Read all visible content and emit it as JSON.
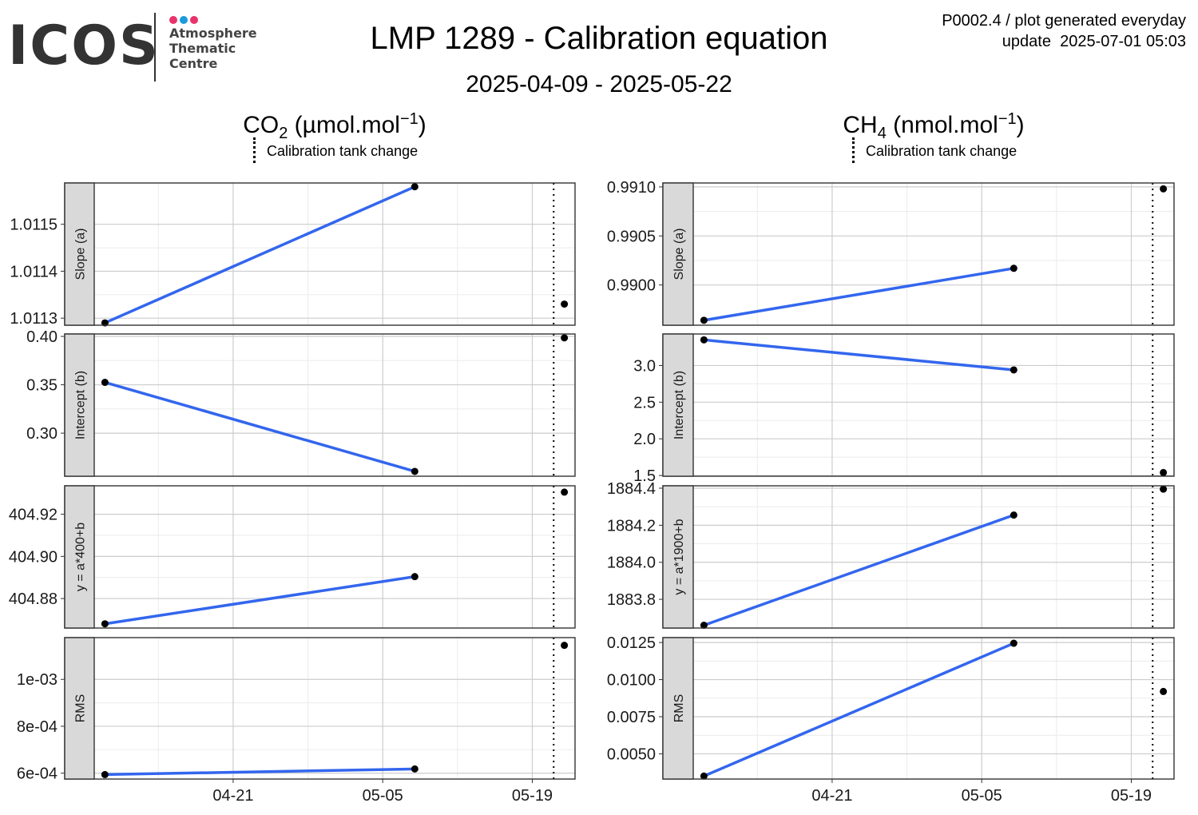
{
  "header": {
    "logo_word": "ICOS",
    "logo_lines": [
      "Atmosphere",
      "Thematic",
      "Centre"
    ],
    "logo_dot_colors": [
      "#e8336d",
      "#1a9bdc",
      "#e8336d"
    ],
    "title": "LMP 1289 - Calibration equation",
    "subtitle": "2025-04-09 - 2025-05-22",
    "meta_line1": "P0002.4 / plot generated everyday",
    "meta_line2": "update  2025-07-01 05:03"
  },
  "columns": [
    {
      "gas": "CO",
      "gas_sub": "2",
      "unit": " (µmol.mol",
      "unit_sup": "−1",
      "unit_end": ")",
      "legend": "Calibration tank change"
    },
    {
      "gas": "CH",
      "gas_sub": "4",
      "unit": " (nmol.mol",
      "unit_sup": "−1",
      "unit_end": ")",
      "legend": "Calibration tank change"
    }
  ],
  "colors": {
    "line": "#3366ee",
    "point": "#000000",
    "strip_bg": "#d9d9d9",
    "grid_major": "#cccccc",
    "grid_minor": "#ebebeb"
  },
  "chart_data": {
    "type": "line",
    "facet_rows": [
      "Slope (a)",
      "Intercept (b)",
      "y = a*400+b",
      "RMS"
    ],
    "facet_rows_ch4": [
      "Slope (a)",
      "Intercept (b)",
      "y = a*1900+b",
      "RMS"
    ],
    "x_ticks": [
      "04-21",
      "05-05",
      "05-19"
    ],
    "x_tick_dates": [
      "2025-04-21",
      "2025-05-05",
      "2025-05-19"
    ],
    "xlim": [
      "2025-04-08",
      "2025-05-23"
    ],
    "calibration_tank_change": "2025-05-21",
    "dates": [
      "2025-04-09",
      "2025-05-08",
      "2025-05-22"
    ],
    "panels": [
      {
        "col": 0,
        "row": 0,
        "values": [
          1.01129,
          1.01158,
          1.01133
        ],
        "ylim": [
          1.011285,
          1.011588
        ],
        "ticks": [
          1.0113,
          1.0114,
          1.0115
        ],
        "tick_labels": [
          "1.0113",
          "1.0114",
          "1.0115"
        ]
      },
      {
        "col": 0,
        "row": 1,
        "values": [
          0.3525,
          0.2605,
          0.3985
        ],
        "ylim": [
          0.2555,
          0.4025
        ],
        "ticks": [
          0.3,
          0.35,
          0.4
        ],
        "tick_labels": [
          "0.30",
          "0.35",
          "0.40"
        ]
      },
      {
        "col": 0,
        "row": 2,
        "values": [
          404.868,
          404.8904,
          404.9305
        ],
        "ylim": [
          404.866,
          404.9335
        ],
        "ticks": [
          404.88,
          404.9,
          404.92
        ],
        "tick_labels": [
          "404.88",
          "404.90",
          "404.92"
        ]
      },
      {
        "col": 0,
        "row": 3,
        "values": [
          0.000594,
          0.000618,
          0.001145
        ],
        "ylim": [
          0.000575,
          0.001178
        ],
        "ticks": [
          0.0006,
          0.0008,
          0.001
        ],
        "tick_labels": [
          "6e-04",
          "8e-04",
          "1e-03"
        ]
      },
      {
        "col": 1,
        "row": 0,
        "values": [
          0.98964,
          0.99017,
          0.99098
        ],
        "ylim": [
          0.98959,
          0.99104
        ],
        "ticks": [
          0.99,
          0.9905,
          0.991
        ],
        "tick_labels": [
          "0.9900",
          "0.9905",
          "0.9910"
        ]
      },
      {
        "col": 1,
        "row": 1,
        "values": [
          3.35,
          2.94,
          1.54
        ],
        "ylim": [
          1.49,
          3.43
        ],
        "ticks": [
          1.5,
          2.0,
          2.5,
          3.0
        ],
        "tick_labels": [
          "1.5",
          "2.0",
          "2.5",
          "3.0"
        ]
      },
      {
        "col": 1,
        "row": 2,
        "values": [
          1883.66,
          1884.255,
          1884.395
        ],
        "ylim": [
          1883.645,
          1884.413
        ],
        "ticks": [
          1883.8,
          1884.0,
          1884.2,
          1884.4
        ],
        "tick_labels": [
          "1883.8",
          "1884.0",
          "1884.2",
          "1884.4"
        ]
      },
      {
        "col": 1,
        "row": 3,
        "values": [
          0.0035,
          0.01245,
          0.0092
        ],
        "ylim": [
          0.0033,
          0.01283
        ],
        "ticks": [
          0.005,
          0.0075,
          0.01,
          0.0125
        ],
        "tick_labels": [
          "0.0050",
          "0.0075",
          "0.0100",
          "0.0125"
        ]
      }
    ]
  }
}
